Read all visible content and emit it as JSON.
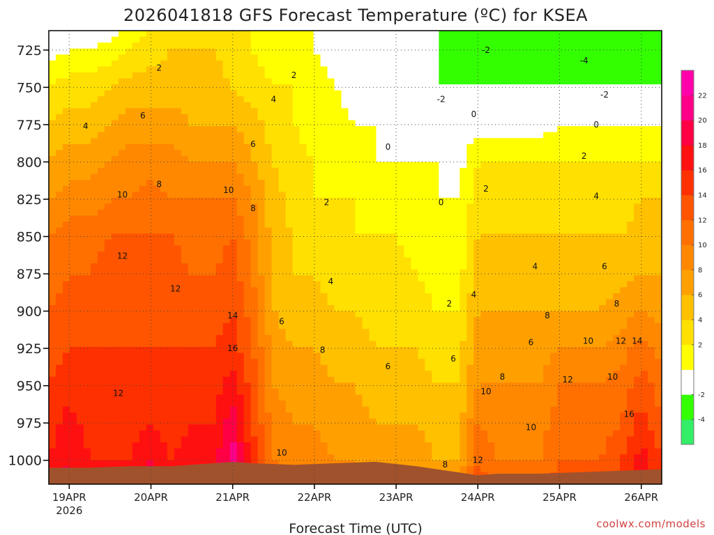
{
  "chart_data": {
    "type": "heatmap",
    "title": "2026041818 GFS Forecast Temperature (ºC) for KSEA",
    "xlabel": "Forecast Time (UTC)",
    "ylabel": "",
    "y_axis": {
      "values": [
        725,
        750,
        775,
        800,
        825,
        850,
        875,
        900,
        925,
        950,
        975,
        1000
      ],
      "range": [
        712,
        1016
      ],
      "inverted": true
    },
    "x_axis": {
      "ticks": [
        {
          "label": "19APR",
          "sublabel": "2026",
          "day": 0
        },
        {
          "label": "20APR",
          "day": 1
        },
        {
          "label": "21APR",
          "day": 2
        },
        {
          "label": "22APR",
          "day": 3
        },
        {
          "label": "23APR",
          "day": 4
        },
        {
          "label": "24APR",
          "day": 5
        },
        {
          "label": "25APR",
          "day": 6
        },
        {
          "label": "26APR",
          "day": 7
        }
      ],
      "range_days": [
        -0.25,
        7.25
      ]
    },
    "colorbar": {
      "levels": [
        -6,
        -4,
        -2,
        0,
        2,
        4,
        6,
        8,
        10,
        12,
        14,
        16,
        18,
        20,
        22,
        24
      ],
      "tick_labels": [
        "-4",
        "-2",
        "2",
        "4",
        "6",
        "8",
        "10",
        "12",
        "14",
        "16",
        "18",
        "20",
        "22"
      ],
      "colors": [
        "#33ee66",
        "#33ff00",
        "#ffffff",
        "#ffff00",
        "#ffe000",
        "#ffc000",
        "#ffa000",
        "#ff8800",
        "#ff7000",
        "#ff5500",
        "#ff3000",
        "#ff1010",
        "#ff0044",
        "#ff0088",
        "#ff00aa"
      ]
    },
    "profiles": {
      "comment": "temperature (C) at each pressure level, per forecast time (days from 19APR 00Z)",
      "levels_hpa": [
        712,
        725,
        750,
        775,
        800,
        825,
        850,
        875,
        900,
        925,
        950,
        975,
        1000,
        1016
      ],
      "times_days": [
        -0.25,
        0.0,
        0.25,
        0.5,
        0.75,
        1.0,
        1.25,
        1.5,
        1.75,
        2.0,
        2.25,
        2.5,
        2.75,
        3.0,
        3.25,
        3.5,
        3.75,
        4.0,
        4.25,
        4.5,
        4.75,
        5.0,
        5.25,
        5.5,
        5.75,
        6.0,
        6.25,
        6.5,
        6.75,
        7.0,
        7.25
      ],
      "temps": [
        [
          -2,
          -1,
          2,
          4,
          6,
          8,
          10,
          11,
          12,
          13,
          14,
          15,
          16,
          17
        ],
        [
          -2,
          0,
          3,
          5,
          7,
          9,
          11,
          12,
          13,
          14,
          15,
          17,
          18,
          19
        ],
        [
          -2,
          0,
          3,
          5,
          7,
          9,
          11,
          12,
          13,
          14,
          14,
          15,
          16,
          17
        ],
        [
          -1,
          1,
          4,
          6,
          8,
          10,
          12,
          13,
          13,
          14,
          14,
          15,
          16,
          17
        ],
        [
          1,
          2,
          5,
          7,
          9,
          10,
          12,
          13,
          13,
          14,
          14,
          15,
          16,
          17
        ],
        [
          2,
          3,
          5,
          7,
          9,
          11,
          12,
          13,
          14,
          14,
          15,
          16,
          18,
          19
        ],
        [
          3,
          4,
          5,
          7,
          9,
          10,
          12,
          13,
          13,
          14,
          14,
          15,
          16,
          17
        ],
        [
          4,
          4,
          5,
          6,
          8,
          10,
          11,
          12,
          13,
          14,
          15,
          16,
          17,
          18
        ],
        [
          3,
          4,
          5,
          6,
          8,
          10,
          11,
          12,
          13,
          14,
          15,
          16,
          17,
          18
        ],
        [
          2,
          3,
          4,
          6,
          8,
          10,
          12,
          13,
          14,
          15,
          17,
          19,
          21,
          22
        ],
        [
          2,
          2,
          3,
          5,
          6,
          8,
          9,
          10,
          11,
          12,
          13,
          14,
          15,
          16
        ],
        [
          1,
          1,
          2,
          3,
          4,
          5,
          5,
          5,
          6,
          7,
          8,
          9,
          10,
          11
        ],
        [
          0,
          1,
          2,
          2,
          3,
          3,
          4,
          4,
          5,
          6,
          7,
          8,
          9,
          10
        ],
        [
          0,
          0,
          1,
          1,
          2,
          2,
          3,
          4,
          5,
          6,
          7,
          8,
          9,
          10
        ],
        [
          -1,
          -1,
          0,
          1,
          1,
          2,
          2,
          3,
          4,
          5,
          6,
          7,
          8,
          9
        ],
        [
          -1,
          -1,
          -1,
          0,
          1,
          2,
          2,
          3,
          4,
          5,
          6,
          7,
          8,
          9
        ],
        [
          -1,
          -1,
          -1,
          0,
          0,
          1,
          2,
          3,
          3,
          4,
          5,
          6,
          7,
          8
        ],
        [
          -1,
          -1,
          -1,
          -1,
          0,
          1,
          2,
          3,
          3,
          4,
          5,
          6,
          7,
          8
        ],
        [
          -2,
          -2,
          -1,
          -1,
          0,
          0,
          1,
          2,
          3,
          4,
          5,
          6,
          7,
          8
        ],
        [
          -2,
          -2,
          -2,
          -1,
          0,
          0,
          0,
          1,
          2,
          3,
          4,
          5,
          6,
          7
        ],
        [
          -3,
          -3,
          -2,
          -1,
          -1,
          0,
          0,
          1,
          2,
          3,
          4,
          5,
          6,
          7
        ],
        [
          -3,
          -3,
          -2,
          -1,
          2,
          3,
          4,
          5,
          6,
          7,
          8,
          10,
          12,
          13
        ],
        [
          -3,
          -3,
          -2,
          -1,
          2,
          3,
          4,
          5,
          6,
          7,
          8,
          9,
          10,
          11
        ],
        [
          -3,
          -3,
          -2,
          -1,
          2,
          3,
          4,
          5,
          6,
          7,
          8,
          9,
          10,
          11
        ],
        [
          -4,
          -3,
          -2,
          -1,
          2,
          3,
          4,
          5,
          6,
          7,
          8,
          9,
          10,
          11
        ],
        [
          -4,
          -3,
          -2,
          0,
          2,
          3,
          4,
          5,
          6,
          8,
          10,
          11,
          12,
          13
        ],
        [
          -4,
          -3,
          -2,
          0,
          2,
          3,
          4,
          5,
          6,
          8,
          10,
          11,
          12,
          13
        ],
        [
          -4,
          -4,
          -2,
          0,
          2,
          3,
          4,
          5,
          6,
          8,
          10,
          11,
          12,
          13
        ],
        [
          -4,
          -4,
          -2,
          0,
          2,
          3,
          4,
          5,
          7,
          9,
          11,
          12,
          14,
          15
        ],
        [
          -4,
          -4,
          -2,
          0,
          2,
          4,
          5,
          6,
          8,
          11,
          13,
          15,
          17,
          18
        ],
        [
          -4,
          -4,
          -2,
          0,
          2,
          4,
          5,
          6,
          7,
          9,
          11,
          12,
          14,
          15
        ]
      ]
    },
    "terrain": {
      "comment": "surface pressure (hPa) along the bottom of the plot",
      "times_days": [
        -0.25,
        0.25,
        0.75,
        1.25,
        1.75,
        2.0,
        2.25,
        2.75,
        3.25,
        3.75,
        4.25,
        4.75,
        5.0,
        5.25,
        5.75,
        6.25,
        6.75,
        7.25
      ],
      "pressure": [
        1005,
        1005,
        1004,
        1004,
        1002,
        1001,
        1002,
        1003,
        1002,
        1001,
        1004,
        1008,
        1010,
        1009,
        1009,
        1008,
        1007,
        1006
      ],
      "color": "#a0522d"
    },
    "contour_labels": [
      {
        "text": "2",
        "day": 1.1,
        "hpa": 737
      },
      {
        "text": "2",
        "day": 2.75,
        "hpa": 742
      },
      {
        "text": "4",
        "day": 0.2,
        "hpa": 776
      },
      {
        "text": "4",
        "day": 2.5,
        "hpa": 758
      },
      {
        "text": "6",
        "day": 0.9,
        "hpa": 769
      },
      {
        "text": "6",
        "day": 2.25,
        "hpa": 788
      },
      {
        "text": "8",
        "day": 1.1,
        "hpa": 815
      },
      {
        "text": "8",
        "day": 2.25,
        "hpa": 831
      },
      {
        "text": "10",
        "day": 0.65,
        "hpa": 822
      },
      {
        "text": "10",
        "day": 1.95,
        "hpa": 819
      },
      {
        "text": "12",
        "day": 0.65,
        "hpa": 863
      },
      {
        "text": "12",
        "day": 1.3,
        "hpa": 885
      },
      {
        "text": "14",
        "day": 2.0,
        "hpa": 903
      },
      {
        "text": "16",
        "day": 2.0,
        "hpa": 925
      },
      {
        "text": "12",
        "day": 0.6,
        "hpa": 955
      },
      {
        "text": "10",
        "day": 2.6,
        "hpa": 995
      },
      {
        "text": "6",
        "day": 2.6,
        "hpa": 907
      },
      {
        "text": "2",
        "day": 3.15,
        "hpa": 827
      },
      {
        "text": "4",
        "day": 3.2,
        "hpa": 880
      },
      {
        "text": "8",
        "day": 3.1,
        "hpa": 926
      },
      {
        "text": "6",
        "day": 3.9,
        "hpa": 937
      },
      {
        "text": "0",
        "day": 3.9,
        "hpa": 790
      },
      {
        "text": "0",
        "day": 4.55,
        "hpa": 827
      },
      {
        "text": "-2",
        "day": 4.55,
        "hpa": 758
      },
      {
        "text": "0",
        "day": 4.95,
        "hpa": 768
      },
      {
        "text": "-2",
        "day": 5.1,
        "hpa": 725
      },
      {
        "text": "2",
        "day": 4.65,
        "hpa": 895
      },
      {
        "text": "4",
        "day": 4.95,
        "hpa": 889
      },
      {
        "text": "6",
        "day": 4.7,
        "hpa": 932
      },
      {
        "text": "2",
        "day": 5.1,
        "hpa": 818
      },
      {
        "text": "10",
        "day": 5.1,
        "hpa": 954
      },
      {
        "text": "8",
        "day": 5.3,
        "hpa": 944
      },
      {
        "text": "12",
        "day": 5.0,
        "hpa": 1000
      },
      {
        "text": "8",
        "day": 4.6,
        "hpa": 1003
      },
      {
        "text": "4",
        "day": 5.7,
        "hpa": 870
      },
      {
        "text": "8",
        "day": 5.85,
        "hpa": 903
      },
      {
        "text": "6",
        "day": 5.65,
        "hpa": 921
      },
      {
        "text": "10",
        "day": 6.35,
        "hpa": 920
      },
      {
        "text": "12",
        "day": 6.1,
        "hpa": 946
      },
      {
        "text": "10",
        "day": 5.65,
        "hpa": 978
      },
      {
        "text": "2",
        "day": 6.3,
        "hpa": 796
      },
      {
        "text": "0",
        "day": 6.45,
        "hpa": 775
      },
      {
        "text": "-2",
        "day": 6.55,
        "hpa": 755
      },
      {
        "text": "-4",
        "day": 6.3,
        "hpa": 732
      },
      {
        "text": "4",
        "day": 6.45,
        "hpa": 823
      },
      {
        "text": "6",
        "day": 6.55,
        "hpa": 870
      },
      {
        "text": "8",
        "day": 6.7,
        "hpa": 895
      },
      {
        "text": "12",
        "day": 6.75,
        "hpa": 920
      },
      {
        "text": "14",
        "day": 6.95,
        "hpa": 920
      },
      {
        "text": "10",
        "day": 6.65,
        "hpa": 944
      },
      {
        "text": "16",
        "day": 6.85,
        "hpa": 969
      }
    ],
    "credit": "coolwx.com/models"
  }
}
